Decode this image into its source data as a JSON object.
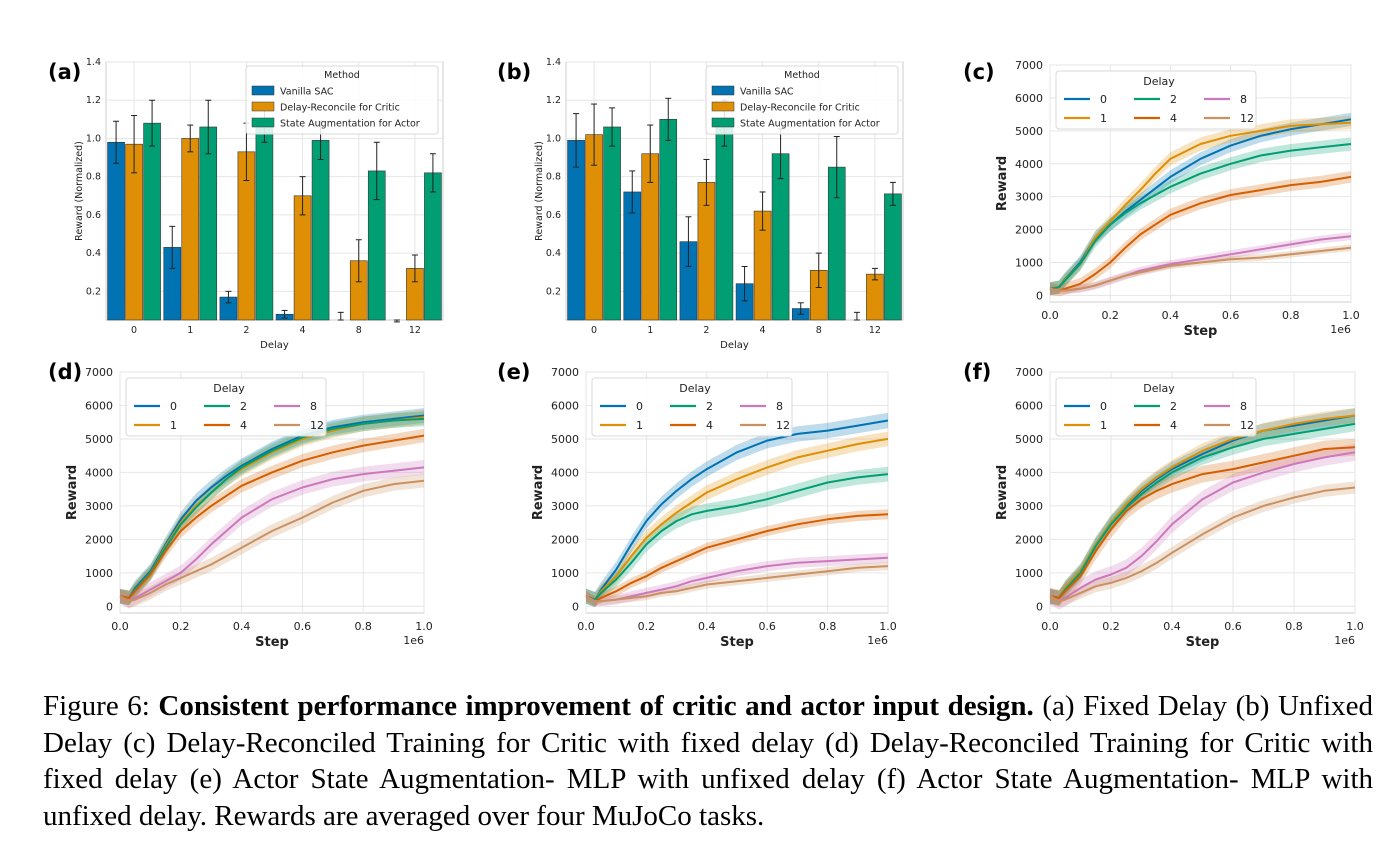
{
  "caption": {
    "prefix": "Figure 6:",
    "bold": "Consistent performance improvement of critic and actor input design.",
    "rest": "(a) Fixed Delay (b) Unfixed Delay (c) Delay-Reconciled Training for Critic with fixed delay (d) Delay-Reconciled Training for Critic with fixed delay (e) Actor State Augmentation- MLP with unfixed delay (f) Actor State Augmentation- MLP with unfixed delay. Rewards are averaged over four MuJoCo tasks."
  },
  "colors": {
    "blue": "#0173b2",
    "orange": "#de8f05",
    "green": "#029e73",
    "vermilion": "#d55e00",
    "pink": "#cc78bc",
    "tan": "#ca9161"
  },
  "chart_data": [
    {
      "panel": "(a)",
      "type": "bar",
      "xlabel": "Delay",
      "ylabel": "Reward (Normalized)",
      "categories": [
        "0",
        "1",
        "2",
        "4",
        "8",
        "12"
      ],
      "ylim": [
        0.05,
        1.4
      ],
      "yticks": [
        "0.2",
        "0.4",
        "0.6",
        "0.8",
        "1.0",
        "1.2",
        "1.4"
      ],
      "legend_title": "Method",
      "series": [
        {
          "name": "Vanilla SAC",
          "color": "#0173b2",
          "values": [
            0.98,
            0.43,
            0.17,
            0.08,
            0.05,
            0.01
          ],
          "errors": [
            0.11,
            0.11,
            0.03,
            0.02,
            0.04,
            0.03
          ]
        },
        {
          "name": "Delay-Reconcile for Critic",
          "color": "#de8f05",
          "values": [
            0.97,
            1.0,
            0.93,
            0.7,
            0.36,
            0.32
          ],
          "errors": [
            0.15,
            0.07,
            0.15,
            0.1,
            0.11,
            0.07
          ]
        },
        {
          "name": "State Augmentation for Actor",
          "color": "#029e73",
          "values": [
            1.08,
            1.06,
            1.08,
            0.99,
            0.83,
            0.82
          ],
          "errors": [
            0.12,
            0.14,
            0.1,
            0.1,
            0.15,
            0.1
          ]
        }
      ]
    },
    {
      "panel": "(b)",
      "type": "bar",
      "xlabel": "Delay",
      "ylabel": "Reward (Normalized)",
      "categories": [
        "0",
        "1",
        "2",
        "4",
        "8",
        "12"
      ],
      "ylim": [
        0.05,
        1.4
      ],
      "yticks": [
        "0.2",
        "0.4",
        "0.6",
        "0.8",
        "1.0",
        "1.2",
        "1.4"
      ],
      "legend_title": "Method",
      "series": [
        {
          "name": "Vanilla SAC",
          "color": "#0173b2",
          "values": [
            0.99,
            0.72,
            0.46,
            0.24,
            0.11,
            0.02
          ],
          "errors": [
            0.14,
            0.11,
            0.13,
            0.09,
            0.03,
            0.07
          ]
        },
        {
          "name": "Delay-Reconcile for Critic",
          "color": "#de8f05",
          "values": [
            1.02,
            0.92,
            0.77,
            0.62,
            0.31,
            0.29
          ],
          "errors": [
            0.16,
            0.15,
            0.12,
            0.1,
            0.09,
            0.03
          ]
        },
        {
          "name": "State Augmentation for Actor",
          "color": "#029e73",
          "values": [
            1.06,
            1.1,
            1.08,
            0.92,
            0.85,
            0.71
          ],
          "errors": [
            0.1,
            0.11,
            0.12,
            0.13,
            0.16,
            0.06
          ]
        }
      ]
    },
    {
      "panel": "(c)",
      "type": "line",
      "xlabel": "Step",
      "ylabel": "Reward",
      "xscale_label": "1e6",
      "xlim": [
        0,
        1.0
      ],
      "ylim": [
        -200,
        7000
      ],
      "xticks": [
        "0.0",
        "0.2",
        "0.4",
        "0.6",
        "0.8",
        "1.0"
      ],
      "yticks": [
        "0",
        "1000",
        "2000",
        "3000",
        "4000",
        "5000",
        "6000",
        "7000"
      ],
      "legend_title": "Delay",
      "x": [
        0,
        0.03,
        0.05,
        0.1,
        0.15,
        0.2,
        0.25,
        0.3,
        0.35,
        0.4,
        0.5,
        0.6,
        0.7,
        0.8,
        0.9,
        1.0
      ],
      "series": [
        {
          "name": "0",
          "color": "#0173b2",
          "band": 200,
          "values": [
            200,
            250,
            500,
            1000,
            1750,
            2150,
            2550,
            2900,
            3250,
            3600,
            4150,
            4550,
            4850,
            5050,
            5200,
            5350
          ]
        },
        {
          "name": "1",
          "color": "#de8f05",
          "band": 200,
          "values": [
            200,
            250,
            480,
            950,
            1750,
            2250,
            2750,
            3200,
            3700,
            4150,
            4600,
            4850,
            5000,
            5150,
            5200,
            5250
          ]
        },
        {
          "name": "2",
          "color": "#029e73",
          "band": 200,
          "values": [
            200,
            250,
            450,
            950,
            1650,
            2150,
            2500,
            2800,
            3050,
            3300,
            3700,
            4000,
            4250,
            4400,
            4500,
            4600
          ]
        },
        {
          "name": "4",
          "color": "#d55e00",
          "band": 180,
          "values": [
            200,
            150,
            200,
            350,
            650,
            1000,
            1450,
            1850,
            2150,
            2450,
            2800,
            3050,
            3200,
            3350,
            3450,
            3600
          ]
        },
        {
          "name": "8",
          "color": "#cc78bc",
          "band": 120,
          "values": [
            200,
            150,
            150,
            200,
            300,
            450,
            600,
            750,
            850,
            950,
            1100,
            1250,
            1400,
            1550,
            1700,
            1800
          ]
        },
        {
          "name": "12",
          "color": "#ca9161",
          "band": 100,
          "values": [
            200,
            150,
            150,
            200,
            300,
            450,
            600,
            700,
            800,
            900,
            1000,
            1100,
            1150,
            1250,
            1350,
            1450
          ]
        }
      ]
    },
    {
      "panel": "(d)",
      "type": "line",
      "xlabel": "Step",
      "ylabel": "Reward",
      "xscale_label": "1e6",
      "xlim": [
        0,
        1.0
      ],
      "ylim": [
        -200,
        7000
      ],
      "xticks": [
        "0.0",
        "0.2",
        "0.4",
        "0.6",
        "0.8",
        "1.0"
      ],
      "yticks": [
        "0",
        "1000",
        "2000",
        "3000",
        "4000",
        "5000",
        "6000",
        "7000"
      ],
      "legend_title": "Delay",
      "x": [
        0,
        0.03,
        0.05,
        0.1,
        0.15,
        0.2,
        0.25,
        0.3,
        0.35,
        0.4,
        0.5,
        0.6,
        0.7,
        0.8,
        0.9,
        1.0
      ],
      "series": [
        {
          "name": "0",
          "color": "#0173b2",
          "band": 220,
          "values": [
            300,
            250,
            550,
            1050,
            1850,
            2600,
            3150,
            3550,
            3900,
            4200,
            4700,
            5100,
            5350,
            5500,
            5600,
            5700
          ]
        },
        {
          "name": "1",
          "color": "#de8f05",
          "band": 220,
          "values": [
            300,
            250,
            500,
            1000,
            1800,
            2500,
            3000,
            3400,
            3800,
            4100,
            4600,
            5000,
            5250,
            5450,
            5550,
            5650
          ]
        },
        {
          "name": "2",
          "color": "#029e73",
          "band": 220,
          "values": [
            300,
            250,
            500,
            1000,
            1750,
            2450,
            2950,
            3400,
            3800,
            4150,
            4650,
            5050,
            5300,
            5450,
            5550,
            5600
          ]
        },
        {
          "name": "4",
          "color": "#d55e00",
          "band": 200,
          "values": [
            300,
            250,
            450,
            950,
            1650,
            2250,
            2650,
            3000,
            3300,
            3600,
            4000,
            4350,
            4600,
            4800,
            4950,
            5100
          ]
        },
        {
          "name": "8",
          "color": "#cc78bc",
          "band": 220,
          "values": [
            300,
            150,
            250,
            500,
            750,
            1000,
            1400,
            1850,
            2250,
            2650,
            3200,
            3550,
            3800,
            3950,
            4050,
            4150
          ]
        },
        {
          "name": "12",
          "color": "#ca9161",
          "band": 200,
          "values": [
            300,
            150,
            200,
            400,
            650,
            850,
            1050,
            1250,
            1500,
            1750,
            2250,
            2650,
            3100,
            3450,
            3650,
            3750
          ]
        }
      ]
    },
    {
      "panel": "(e)",
      "type": "line",
      "xlabel": "Step",
      "ylabel": "Reward",
      "xscale_label": "1e6",
      "xlim": [
        0,
        1.0
      ],
      "ylim": [
        -200,
        7000
      ],
      "xticks": [
        "0.0",
        "0.2",
        "0.4",
        "0.6",
        "0.8",
        "1.0"
      ],
      "yticks": [
        "0",
        "1000",
        "2000",
        "3000",
        "4000",
        "5000",
        "6000",
        "7000"
      ],
      "legend_title": "Delay",
      "x": [
        0,
        0.03,
        0.05,
        0.1,
        0.15,
        0.2,
        0.25,
        0.3,
        0.35,
        0.4,
        0.5,
        0.6,
        0.7,
        0.8,
        0.9,
        1.0
      ],
      "series": [
        {
          "name": "0",
          "color": "#0173b2",
          "band": 230,
          "values": [
            300,
            200,
            500,
            1100,
            1850,
            2550,
            3050,
            3450,
            3800,
            4100,
            4600,
            4950,
            5150,
            5250,
            5400,
            5550
          ]
        },
        {
          "name": "1",
          "color": "#de8f05",
          "band": 220,
          "values": [
            300,
            200,
            450,
            900,
            1500,
            2050,
            2450,
            2800,
            3100,
            3400,
            3800,
            4150,
            4450,
            4650,
            4850,
            5000
          ]
        },
        {
          "name": "2",
          "color": "#029e73",
          "band": 220,
          "values": [
            300,
            200,
            400,
            800,
            1300,
            1850,
            2250,
            2550,
            2750,
            2850,
            3000,
            3200,
            3450,
            3700,
            3850,
            3950
          ]
        },
        {
          "name": "4",
          "color": "#d55e00",
          "band": 150,
          "values": [
            300,
            150,
            250,
            450,
            700,
            900,
            1150,
            1350,
            1550,
            1750,
            2000,
            2250,
            2450,
            2600,
            2700,
            2750
          ]
        },
        {
          "name": "8",
          "color": "#cc78bc",
          "band": 150,
          "values": [
            300,
            150,
            150,
            200,
            300,
            400,
            500,
            600,
            750,
            850,
            1050,
            1200,
            1300,
            1350,
            1400,
            1450
          ]
        },
        {
          "name": "12",
          "color": "#ca9161",
          "band": 120,
          "values": [
            300,
            150,
            150,
            200,
            250,
            300,
            400,
            450,
            550,
            650,
            750,
            850,
            950,
            1050,
            1150,
            1200
          ]
        }
      ]
    },
    {
      "panel": "(f)",
      "type": "line",
      "xlabel": "Step",
      "ylabel": "Reward",
      "xscale_label": "1e6",
      "xlim": [
        0,
        1.0
      ],
      "ylim": [
        -200,
        7000
      ],
      "xticks": [
        "0.0",
        "0.2",
        "0.4",
        "0.6",
        "0.8",
        "1.0"
      ],
      "yticks": [
        "0",
        "1000",
        "2000",
        "3000",
        "4000",
        "5000",
        "6000",
        "7000"
      ],
      "legend_title": "Delay",
      "x": [
        0,
        0.03,
        0.05,
        0.1,
        0.15,
        0.2,
        0.25,
        0.3,
        0.35,
        0.4,
        0.5,
        0.6,
        0.7,
        0.8,
        0.9,
        1.0
      ],
      "series": [
        {
          "name": "0",
          "color": "#0173b2",
          "band": 220,
          "values": [
            300,
            250,
            550,
            1050,
            1850,
            2500,
            3000,
            3450,
            3800,
            4100,
            4550,
            4950,
            5250,
            5400,
            5550,
            5700
          ]
        },
        {
          "name": "1",
          "color": "#de8f05",
          "band": 220,
          "values": [
            300,
            250,
            550,
            1050,
            1850,
            2500,
            3050,
            3500,
            3850,
            4150,
            4650,
            5000,
            5250,
            5450,
            5600,
            5700
          ]
        },
        {
          "name": "2",
          "color": "#029e73",
          "band": 220,
          "values": [
            300,
            250,
            500,
            1000,
            1800,
            2450,
            2950,
            3350,
            3700,
            4000,
            4450,
            4750,
            5000,
            5150,
            5300,
            5450
          ]
        },
        {
          "name": "4",
          "color": "#d55e00",
          "band": 250,
          "values": [
            300,
            250,
            450,
            900,
            1650,
            2300,
            2850,
            3200,
            3450,
            3650,
            3950,
            4100,
            4300,
            4500,
            4700,
            4750
          ]
        },
        {
          "name": "8",
          "color": "#cc78bc",
          "band": 250,
          "values": [
            300,
            150,
            250,
            550,
            800,
            950,
            1150,
            1500,
            1950,
            2450,
            3200,
            3700,
            4000,
            4250,
            4450,
            4600
          ]
        },
        {
          "name": "12",
          "color": "#ca9161",
          "band": 180,
          "values": [
            300,
            150,
            200,
            400,
            600,
            700,
            850,
            1050,
            1300,
            1600,
            2150,
            2650,
            3000,
            3250,
            3450,
            3550
          ]
        }
      ]
    }
  ]
}
